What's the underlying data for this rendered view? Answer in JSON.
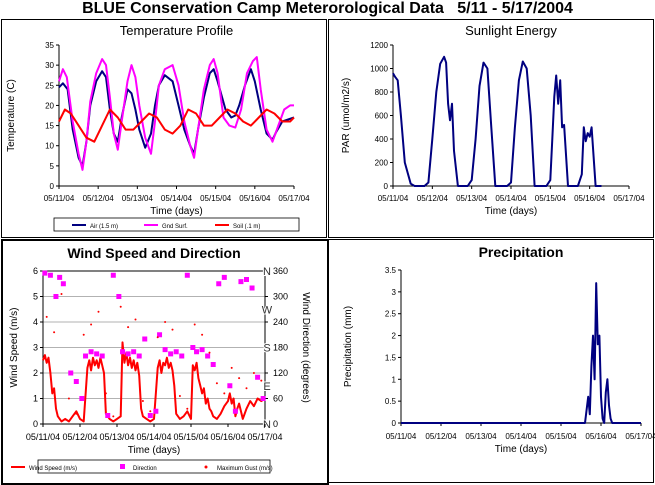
{
  "page_title": "BLUE Conservation Camp Meterorological Data   5/11 - 5/17/2004",
  "chart_data": [
    {
      "type": "line",
      "title": "Temperature Profile",
      "xlabel": "Time (days)",
      "ylabel": "Temperature (C)",
      "ylim": [
        0,
        35
      ],
      "yticks": [
        "0",
        "5",
        "10",
        "15",
        "20",
        "25",
        "30",
        "35"
      ],
      "xlim": [
        0,
        6
      ],
      "xticks": [
        "05/11/04",
        "05/12/04",
        "05/13/04",
        "05/14/04",
        "05/15/04",
        "05/16/04",
        "05/17/04"
      ],
      "grid": false,
      "legend_position": "bottom",
      "series": [
        {
          "name": "Air (1.5 m)",
          "color": "#000080",
          "x": [
            0.0,
            0.1,
            0.22,
            0.35,
            0.5,
            0.6,
            0.7,
            0.8,
            0.95,
            1.1,
            1.2,
            1.3,
            1.4,
            1.5,
            1.6,
            1.75,
            1.85,
            1.95,
            2.05,
            2.2,
            2.35,
            2.45,
            2.55,
            2.7,
            2.9,
            3.05,
            3.2,
            3.35,
            3.45,
            3.55,
            3.7,
            3.85,
            3.95,
            4.05,
            4.25,
            4.4,
            4.5,
            4.6,
            4.75,
            4.9,
            5.0,
            5.15,
            5.3,
            5.45,
            5.55,
            5.7,
            5.85,
            6.0
          ],
          "y": [
            24.5,
            25.5,
            24,
            14,
            7,
            5,
            11,
            20,
            26,
            28.5,
            27,
            19,
            13,
            11,
            17,
            24,
            23,
            19,
            14,
            9.5,
            13,
            20,
            25,
            27.5,
            26,
            20,
            14,
            10,
            8,
            14,
            22,
            28,
            29,
            26,
            19,
            17,
            17.5,
            20,
            25,
            29,
            26,
            19,
            13,
            11.5,
            13.5,
            16,
            16.5,
            17
          ]
        },
        {
          "name": "Gnd Surf.",
          "color": "#ff00ff",
          "x": [
            0.0,
            0.1,
            0.2,
            0.35,
            0.5,
            0.6,
            0.7,
            0.8,
            0.95,
            1.1,
            1.2,
            1.3,
            1.4,
            1.5,
            1.6,
            1.75,
            1.85,
            1.95,
            2.05,
            2.2,
            2.35,
            2.45,
            2.55,
            2.7,
            2.9,
            3.05,
            3.2,
            3.35,
            3.45,
            3.55,
            3.7,
            3.85,
            3.95,
            4.05,
            4.2,
            4.35,
            4.5,
            4.65,
            4.8,
            4.95,
            5.05,
            5.15,
            5.3,
            5.45,
            5.6,
            5.75,
            5.9,
            6.0
          ],
          "y": [
            26,
            29,
            27,
            16,
            8,
            4,
            11,
            21,
            28,
            31.5,
            30,
            22,
            13,
            9,
            16,
            26,
            30,
            27,
            20,
            12,
            8,
            16,
            25,
            29,
            30,
            25,
            16,
            10,
            7,
            14,
            24,
            30,
            31.5,
            28,
            17,
            15,
            14.5,
            19,
            28,
            31,
            32,
            24,
            14,
            11,
            15,
            19,
            20,
            20
          ]
        },
        {
          "name": "Soil (.1 m)",
          "color": "#ff0000",
          "x": [
            0.0,
            0.15,
            0.3,
            0.5,
            0.7,
            0.9,
            1.1,
            1.3,
            1.5,
            1.7,
            1.9,
            2.1,
            2.3,
            2.5,
            2.7,
            2.9,
            3.1,
            3.3,
            3.5,
            3.7,
            3.9,
            4.1,
            4.3,
            4.5,
            4.7,
            4.9,
            5.1,
            5.3,
            5.5,
            5.7,
            5.9,
            6.0
          ],
          "y": [
            16,
            19,
            18,
            15,
            12,
            11,
            15,
            19,
            17,
            14,
            14,
            16,
            18,
            17,
            14,
            13,
            15,
            19,
            18,
            15,
            15,
            17,
            19,
            18,
            16,
            15,
            17,
            19,
            18,
            16,
            16,
            17
          ]
        }
      ]
    },
    {
      "type": "line",
      "title": "Sunlight Energy",
      "xlabel": "Time (days)",
      "ylabel": "PAR (umol/m2/s)",
      "ylim": [
        0,
        1200
      ],
      "yticks": [
        "0",
        "200",
        "400",
        "600",
        "800",
        "1000",
        "1200"
      ],
      "xlim": [
        0,
        6
      ],
      "xticks": [
        "05/11/04",
        "05/12/04",
        "05/13/04",
        "05/14/04",
        "05/15/04",
        "05/16/04",
        "05/17/04"
      ],
      "grid": false,
      "series": [
        {
          "name": "",
          "color": "#000080",
          "x": [
            0.0,
            0.05,
            0.12,
            0.2,
            0.3,
            0.45,
            0.55,
            0.8,
            0.9,
            1.0,
            1.1,
            1.2,
            1.3,
            1.35,
            1.4,
            1.45,
            1.5,
            1.55,
            1.65,
            1.75,
            1.9,
            2.0,
            2.1,
            2.2,
            2.3,
            2.4,
            2.5,
            2.6,
            2.75,
            2.9,
            3.0,
            3.1,
            3.2,
            3.3,
            3.4,
            3.5,
            3.6,
            3.75,
            3.9,
            4.0,
            4.05,
            4.1,
            4.15,
            4.2,
            4.25,
            4.3,
            4.35,
            4.45,
            4.6,
            4.7,
            4.8,
            4.85,
            4.9,
            4.95,
            5.0,
            5.05,
            5.15,
            5.2,
            5.25,
            5.3
          ],
          "y": [
            960,
            930,
            900,
            600,
            200,
            20,
            0,
            0,
            30,
            400,
            800,
            1040,
            1100,
            1050,
            700,
            560,
            700,
            300,
            0,
            0,
            0,
            50,
            400,
            850,
            1050,
            1000,
            500,
            0,
            0,
            0,
            30,
            500,
            900,
            1060,
            1000,
            600,
            0,
            0,
            0,
            50,
            400,
            760,
            940,
            700,
            900,
            500,
            520,
            0,
            0,
            0,
            100,
            500,
            380,
            450,
            420,
            500,
            0,
            0,
            0,
            0
          ]
        }
      ]
    },
    {
      "type": "line",
      "title": "Wind Speed and Direction",
      "xlabel": "Time (days)",
      "ylabel": "Wind Speed (m/s)",
      "ylabel_right": "Wind Direction (degrees)",
      "ylim": [
        0,
        6
      ],
      "yticks": [
        "0",
        "1",
        "2",
        "3",
        "4",
        "5",
        "6"
      ],
      "ylim_right": [
        0,
        360
      ],
      "yticks_right": [
        "0",
        "60",
        "120",
        "180",
        "240",
        "300",
        "360"
      ],
      "compass_labels": [
        "N",
        "E",
        "S",
        "W",
        "N"
      ],
      "xlim": [
        0,
        6
      ],
      "xticks": [
        "05/11/04",
        "05/12/04",
        "05/13/04",
        "05/14/04",
        "05/15/04",
        "05/16/04",
        "05/17/04"
      ],
      "grid": true,
      "legend_position": "bottom",
      "series": [
        {
          "name": "Wind Speed (m/s)",
          "color": "#ff0000",
          "style": "line",
          "x": [
            0.0,
            0.05,
            0.1,
            0.15,
            0.2,
            0.25,
            0.3,
            0.35,
            0.4,
            0.5,
            0.6,
            0.7,
            0.8,
            0.9,
            1.0,
            1.1,
            1.2,
            1.25,
            1.3,
            1.35,
            1.4,
            1.45,
            1.5,
            1.55,
            1.6,
            1.65,
            1.7,
            1.8,
            1.9,
            2.0,
            2.1,
            2.15,
            2.2,
            2.25,
            2.3,
            2.35,
            2.4,
            2.45,
            2.5,
            2.55,
            2.6,
            2.65,
            2.7,
            2.8,
            2.9,
            3.0,
            3.1,
            3.15,
            3.2,
            3.25,
            3.3,
            3.35,
            3.4,
            3.45,
            3.5,
            3.55,
            3.6,
            3.7,
            3.8,
            3.9,
            4.0,
            4.05,
            4.1,
            4.15,
            4.2,
            4.25,
            4.3,
            4.35,
            4.4,
            4.45,
            4.5,
            4.55,
            4.6,
            4.7,
            4.8,
            4.9,
            5.0,
            5.05,
            5.1,
            5.15,
            5.2,
            5.25,
            5.3,
            5.4,
            5.5,
            5.6,
            5.7,
            5.8,
            5.9,
            6.0
          ],
          "y": [
            2.5,
            2.7,
            2.4,
            2.6,
            2.0,
            1.2,
            1.4,
            0.6,
            0.3,
            0.1,
            0.2,
            0.1,
            0.3,
            0.5,
            0.2,
            0.1,
            2.2,
            2.5,
            2.1,
            2.6,
            2.3,
            2.5,
            2.2,
            2.6,
            2.3,
            2.0,
            0.4,
            0.2,
            0.1,
            0.2,
            0.3,
            3.2,
            2.4,
            2.8,
            2.3,
            2.6,
            2.2,
            2.5,
            2.1,
            2.4,
            1.9,
            0.6,
            0.3,
            0.2,
            0.1,
            0.2,
            2.2,
            2.5,
            2.0,
            2.4,
            2.3,
            2.6,
            2.2,
            2.4,
            2.1,
            1.5,
            0.4,
            0.2,
            0.3,
            0.5,
            0.2,
            2.3,
            2.1,
            2.4,
            1.8,
            1.5,
            1.2,
            1.4,
            0.8,
            1.0,
            0.6,
            0.5,
            0.3,
            0.2,
            0.4,
            0.7,
            0.9,
            1.2,
            0.8,
            1.0,
            0.3,
            0.6,
            0.8,
            0.2,
            0.6,
            0.9,
            0.7,
            1.0,
            0.9,
            1.0
          ]
        },
        {
          "name": "Direction",
          "color": "#ff00ff",
          "style": "square-markers",
          "axis": "right",
          "x": [
            0.05,
            0.2,
            0.35,
            0.45,
            0.55,
            0.75,
            0.9,
            1.05,
            1.15,
            1.3,
            1.45,
            1.6,
            1.75,
            1.9,
            2.05,
            2.15,
            2.3,
            2.45,
            2.6,
            2.75,
            2.9,
            3.05,
            3.15,
            3.3,
            3.45,
            3.6,
            3.75,
            3.9,
            4.05,
            4.15,
            4.3,
            4.45,
            4.6,
            4.75,
            4.9,
            5.05,
            5.2,
            5.35,
            5.5,
            5.65,
            5.8,
            5.95
          ],
          "y": [
            355,
            350,
            300,
            345,
            330,
            120,
            100,
            60,
            160,
            170,
            165,
            160,
            20,
            350,
            300,
            170,
            165,
            170,
            160,
            200,
            20,
            30,
            210,
            175,
            165,
            170,
            160,
            350,
            180,
            170,
            175,
            160,
            140,
            330,
            345,
            90,
            30,
            335,
            340,
            320,
            110,
            60
          ]
        },
        {
          "name": "Maximum Gust (m/s)",
          "color": "#ff0000",
          "style": "dots",
          "x": [
            0.1,
            0.3,
            0.5,
            0.7,
            0.9,
            1.1,
            1.3,
            1.5,
            1.7,
            1.9,
            2.1,
            2.3,
            2.5,
            2.7,
            2.9,
            3.1,
            3.3,
            3.5,
            3.7,
            3.9,
            4.1,
            4.3,
            4.5,
            4.7,
            4.9,
            5.1,
            5.3,
            5.5,
            5.7,
            5.9
          ],
          "y": [
            4.2,
            3.6,
            5.1,
            1.0,
            0.4,
            3.5,
            3.9,
            4.4,
            1.2,
            0.3,
            4.6,
            3.8,
            4.1,
            0.9,
            0.5,
            3.4,
            4.0,
            3.7,
            1.1,
            0.6,
            3.9,
            3.5,
            2.8,
            1.6,
            1.2,
            2.2,
            1.8,
            1.4,
            2.0,
            1.7
          ]
        }
      ]
    },
    {
      "type": "line",
      "title": "Precipitation",
      "xlabel": "Time (days)",
      "ylabel": "Precipitation (mm)",
      "ylim": [
        0,
        3.5
      ],
      "yticks": [
        "0",
        "0.5",
        "1",
        "1.5",
        "2",
        "2.5",
        "3",
        "3.5"
      ],
      "xlim": [
        0,
        6
      ],
      "xticks": [
        "05/11/04",
        "05/12/04",
        "05/13/04",
        "05/14/04",
        "05/15/04",
        "05/16/04",
        "05/17/04"
      ],
      "grid": false,
      "series": [
        {
          "name": "",
          "color": "#000080",
          "x": [
            0.0,
            1.0,
            2.0,
            3.0,
            4.0,
            4.6,
            4.68,
            4.72,
            4.76,
            4.8,
            4.84,
            4.88,
            4.92,
            4.96,
            5.0,
            5.04,
            5.08,
            5.12,
            5.16,
            5.2,
            5.24,
            5.28,
            5.32,
            5.4,
            6.0
          ],
          "y": [
            0,
            0,
            0,
            0,
            0,
            0,
            0.6,
            0.2,
            1.3,
            2.0,
            1.0,
            3.2,
            1.8,
            2.0,
            0.6,
            0.1,
            0,
            0.7,
            1.0,
            0.4,
            0.1,
            0,
            0,
            0,
            0
          ]
        }
      ]
    }
  ]
}
